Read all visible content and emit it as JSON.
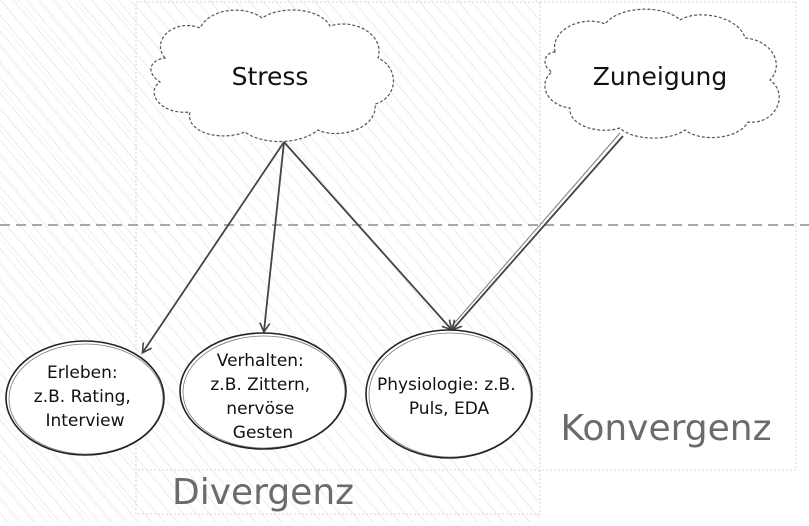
{
  "clouds": {
    "stress": {
      "label": "Stress"
    },
    "zuneigung": {
      "label": "Zuneigung"
    }
  },
  "nodes": {
    "erleben": {
      "lines": [
        "Erleben:",
        "z.B. Rating,",
        "Interview"
      ]
    },
    "verhalten": {
      "lines": [
        "Verhalten:",
        "z.B. Zittern,",
        "nervöse",
        "Gesten"
      ]
    },
    "physiologie": {
      "lines": [
        "Physiologie: z.B.",
        "Puls, EDA"
      ]
    }
  },
  "regions": {
    "divergenz": {
      "label": "Divergenz"
    },
    "konvergenz": {
      "label": "Konvergenz"
    }
  },
  "colors": {
    "hatch": "#c8c8c8",
    "arrow": "#444444",
    "divider": "#a8a8a8",
    "label": "#6b6b6b"
  }
}
